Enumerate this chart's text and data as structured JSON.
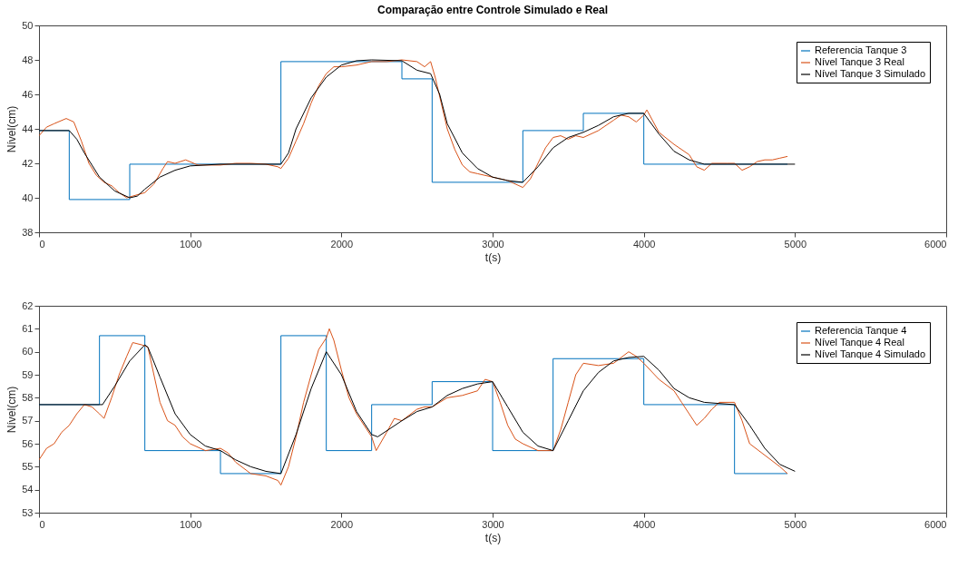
{
  "chart_data": [
    {
      "type": "line",
      "title": "Comparação entre Controle Simulado e Real",
      "xlabel": "t(s)",
      "ylabel": "Nível(cm)",
      "xlim": [
        0,
        6000
      ],
      "xticks": [
        0,
        1000,
        2000,
        3000,
        4000,
        5000,
        6000
      ],
      "ylim": [
        38,
        50
      ],
      "yticks": [
        38,
        40,
        42,
        44,
        46,
        48,
        50
      ],
      "grid": false,
      "legend": "top right",
      "series": [
        {
          "name": "Referencia Tanque 3",
          "type": "step",
          "color": "#0072bd",
          "x": [
            0,
            200,
            600,
            1600,
            2400,
            2600,
            3200,
            3600,
            4000,
            4950
          ],
          "values": [
            43.9,
            39.9,
            41.95,
            47.9,
            46.9,
            40.9,
            43.9,
            44.9,
            41.95,
            41.95
          ]
        },
        {
          "name": "Nível Tanque 3 Real",
          "type": "line",
          "color": "#d95319",
          "x": [
            0,
            50,
            100,
            180,
            230,
            280,
            330,
            380,
            430,
            480,
            530,
            580,
            620,
            700,
            760,
            820,
            850,
            900,
            970,
            1050,
            1200,
            1300,
            1400,
            1500,
            1580,
            1600,
            1650,
            1700,
            1750,
            1800,
            1850,
            1900,
            1950,
            2000,
            2100,
            2200,
            2300,
            2400,
            2500,
            2550,
            2590,
            2620,
            2660,
            2700,
            2750,
            2800,
            2850,
            2900,
            3000,
            3100,
            3150,
            3200,
            3250,
            3300,
            3350,
            3400,
            3450,
            3500,
            3550,
            3600,
            3700,
            3800,
            3850,
            3900,
            3950,
            4000,
            4020,
            4100,
            4200,
            4300,
            4350,
            4400,
            4450,
            4550,
            4600,
            4650,
            4700,
            4750,
            4800,
            4850,
            4900,
            4950
          ],
          "values": [
            43.6,
            44.1,
            44.3,
            44.6,
            44.4,
            43.3,
            42.0,
            41.3,
            40.9,
            40.7,
            40.3,
            40.0,
            40.1,
            40.3,
            40.8,
            41.7,
            42.1,
            42.0,
            42.2,
            41.9,
            41.9,
            42.0,
            42.0,
            41.95,
            41.8,
            41.7,
            42.3,
            43.3,
            44.3,
            45.5,
            46.5,
            47.2,
            47.6,
            47.6,
            47.7,
            47.9,
            47.9,
            48.0,
            47.9,
            47.6,
            47.9,
            47.0,
            45.5,
            44.0,
            42.8,
            41.9,
            41.5,
            41.4,
            41.2,
            41.0,
            40.8,
            40.6,
            41.1,
            42.0,
            42.9,
            43.5,
            43.6,
            43.4,
            43.6,
            43.5,
            43.9,
            44.5,
            44.8,
            44.7,
            44.4,
            44.8,
            45.1,
            43.8,
            43.1,
            42.5,
            41.8,
            41.6,
            42.0,
            42.0,
            42.0,
            41.6,
            41.8,
            42.1,
            42.2,
            42.2,
            42.3,
            42.4
          ]
        },
        {
          "name": "Nível Tanque 3 Simulado",
          "type": "line",
          "color": "#000000",
          "x": [
            0,
            200,
            250,
            300,
            400,
            500,
            600,
            650,
            700,
            800,
            900,
            1000,
            1200,
            1600,
            1650,
            1700,
            1800,
            1900,
            2000,
            2100,
            2200,
            2400,
            2500,
            2590,
            2650,
            2700,
            2800,
            2900,
            3000,
            3100,
            3200,
            3300,
            3400,
            3500,
            3600,
            3700,
            3800,
            3900,
            4000,
            4100,
            4200,
            4300,
            4400,
            4500,
            5000
          ],
          "values": [
            43.9,
            43.9,
            43.4,
            42.6,
            41.2,
            40.4,
            40.0,
            40.1,
            40.5,
            41.2,
            41.6,
            41.85,
            41.95,
            41.95,
            42.6,
            44.0,
            45.8,
            47.0,
            47.7,
            47.95,
            48.0,
            47.95,
            47.4,
            47.2,
            46.0,
            44.3,
            42.6,
            41.7,
            41.2,
            41.0,
            40.9,
            41.8,
            42.9,
            43.5,
            43.8,
            44.2,
            44.7,
            44.9,
            44.9,
            43.7,
            42.7,
            42.2,
            41.95,
            41.95,
            41.95
          ]
        }
      ]
    },
    {
      "type": "line",
      "xlabel": "t(s)",
      "ylabel": "Nível(cm)",
      "xlim": [
        0,
        6000
      ],
      "xticks": [
        0,
        1000,
        2000,
        3000,
        4000,
        5000,
        6000
      ],
      "ylim": [
        53,
        62
      ],
      "yticks": [
        53,
        54,
        55,
        56,
        57,
        58,
        59,
        60,
        61,
        62
      ],
      "grid": false,
      "legend": "top right",
      "series": [
        {
          "name": "Referencia Tanque 4",
          "type": "step",
          "color": "#0072bd",
          "x": [
            0,
            400,
            700,
            1200,
            1600,
            1900,
            2200,
            2600,
            3000,
            3400,
            4000,
            4600,
            4950
          ],
          "values": [
            57.7,
            60.7,
            55.7,
            54.7,
            60.7,
            55.7,
            57.7,
            58.7,
            55.7,
            59.7,
            57.7,
            54.7,
            54.7
          ]
        },
        {
          "name": "Nível Tanque 4 Real",
          "type": "line",
          "color": "#d95319",
          "x": [
            0,
            50,
            100,
            150,
            200,
            250,
            300,
            350,
            400,
            430,
            480,
            530,
            580,
            620,
            680,
            720,
            760,
            800,
            850,
            900,
            950,
            1000,
            1100,
            1200,
            1250,
            1300,
            1400,
            1500,
            1580,
            1600,
            1650,
            1700,
            1750,
            1800,
            1850,
            1900,
            1920,
            1950,
            2000,
            2050,
            2100,
            2200,
            2230,
            2300,
            2350,
            2400,
            2500,
            2550,
            2600,
            2700,
            2800,
            2900,
            2950,
            3000,
            3050,
            3100,
            3150,
            3200,
            3300,
            3400,
            3450,
            3500,
            3550,
            3600,
            3700,
            3800,
            3900,
            3950,
            4000,
            4100,
            4200,
            4250,
            4300,
            4350,
            4400,
            4450,
            4500,
            4600,
            4650,
            4700,
            4800,
            4900,
            4950
          ],
          "values": [
            55.3,
            55.8,
            56.0,
            56.5,
            56.8,
            57.3,
            57.7,
            57.6,
            57.3,
            57.1,
            58.0,
            59.0,
            59.8,
            60.4,
            60.3,
            60.2,
            59.0,
            57.8,
            57.0,
            56.8,
            56.3,
            56.0,
            55.7,
            55.8,
            55.6,
            55.2,
            54.7,
            54.6,
            54.4,
            54.2,
            55.0,
            56.3,
            57.8,
            59.0,
            60.1,
            60.6,
            61.0,
            60.5,
            59.2,
            58.0,
            57.3,
            56.3,
            55.7,
            56.5,
            57.1,
            57.0,
            57.5,
            57.6,
            57.6,
            58.0,
            58.1,
            58.3,
            58.8,
            58.7,
            57.8,
            56.8,
            56.2,
            56.0,
            55.7,
            55.7,
            56.6,
            57.8,
            59.0,
            59.5,
            59.4,
            59.5,
            60.0,
            59.8,
            59.5,
            58.8,
            58.3,
            57.8,
            57.3,
            56.8,
            57.1,
            57.5,
            57.8,
            57.8,
            57.0,
            56.0,
            55.5,
            55.0,
            54.7
          ]
        },
        {
          "name": "Nível Tanque 4 Simulado",
          "type": "line",
          "color": "#000000",
          "x": [
            0,
            420,
            500,
            600,
            700,
            720,
            800,
            900,
            1000,
            1100,
            1200,
            1300,
            1400,
            1500,
            1600,
            1700,
            1800,
            1900,
            2000,
            2100,
            2200,
            2240,
            2400,
            2500,
            2600,
            2700,
            2800,
            2900,
            3000,
            3100,
            3200,
            3300,
            3400,
            3500,
            3600,
            3700,
            3800,
            3900,
            4000,
            4100,
            4200,
            4300,
            4400,
            4600,
            4700,
            4800,
            4900,
            5000
          ],
          "values": [
            57.7,
            57.7,
            58.5,
            59.6,
            60.3,
            60.2,
            58.9,
            57.3,
            56.4,
            55.9,
            55.7,
            55.3,
            55.0,
            54.8,
            54.7,
            56.4,
            58.4,
            60.0,
            59.0,
            57.4,
            56.4,
            56.3,
            57.0,
            57.4,
            57.6,
            58.1,
            58.4,
            58.6,
            58.7,
            57.6,
            56.5,
            55.9,
            55.7,
            57.0,
            58.3,
            59.1,
            59.6,
            59.75,
            59.8,
            59.2,
            58.4,
            58.0,
            57.8,
            57.7,
            56.8,
            55.8,
            55.1,
            54.8
          ]
        }
      ]
    }
  ]
}
